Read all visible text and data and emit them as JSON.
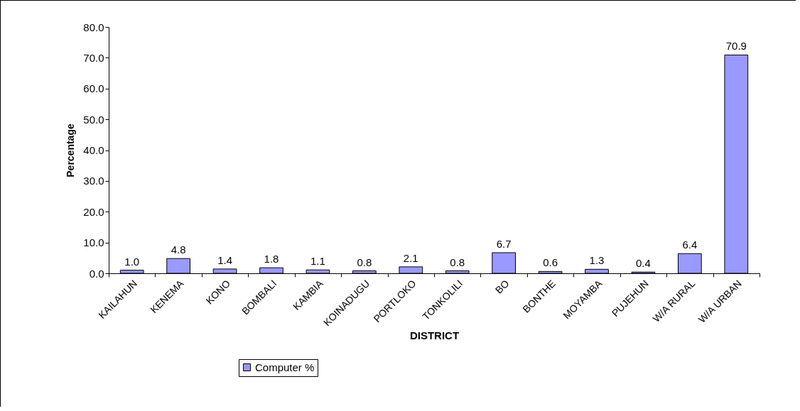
{
  "chart_data": {
    "type": "bar",
    "xlabel": "DISTRICT",
    "ylabel": "Percentage",
    "categories": [
      "KAILAHUN",
      "KENEMA",
      "KONO",
      "BOMBALI",
      "KAMBIA",
      "KOINADUGU",
      "PORTLOKO",
      "TONKOLILI",
      "BO",
      "BONTHE",
      "MOYAMBA",
      "PUJEHUN",
      "W/A RURAL",
      "W/A URBAN"
    ],
    "series": [
      {
        "name": "Computer %",
        "color": "#9999ff",
        "values": [
          1.0,
          4.8,
          1.4,
          1.8,
          1.1,
          0.8,
          2.1,
          0.8,
          6.7,
          0.6,
          1.3,
          0.4,
          6.4,
          70.9
        ]
      }
    ],
    "ylim": [
      0,
      80
    ],
    "yticks": [
      {
        "value": 0,
        "label": "0.0"
      },
      {
        "value": 10,
        "label": "10.0"
      },
      {
        "value": 20,
        "label": "20.0"
      },
      {
        "value": 30,
        "label": "30.0"
      },
      {
        "value": 40,
        "label": "40.0"
      },
      {
        "value": 50,
        "label": "50.0"
      },
      {
        "value": 60,
        "label": "60.0"
      },
      {
        "value": 70,
        "label": "70.0"
      },
      {
        "value": 80,
        "label": "80.0"
      }
    ],
    "value_labels": [
      "1.0",
      "4.8",
      "1.4",
      "1.8",
      "1.1",
      "0.8",
      "2.1",
      "0.8",
      "6.7",
      "0.6",
      "1.3",
      "0.4",
      "6.4",
      "70.9"
    ],
    "grid": false,
    "legend": "bottom"
  }
}
